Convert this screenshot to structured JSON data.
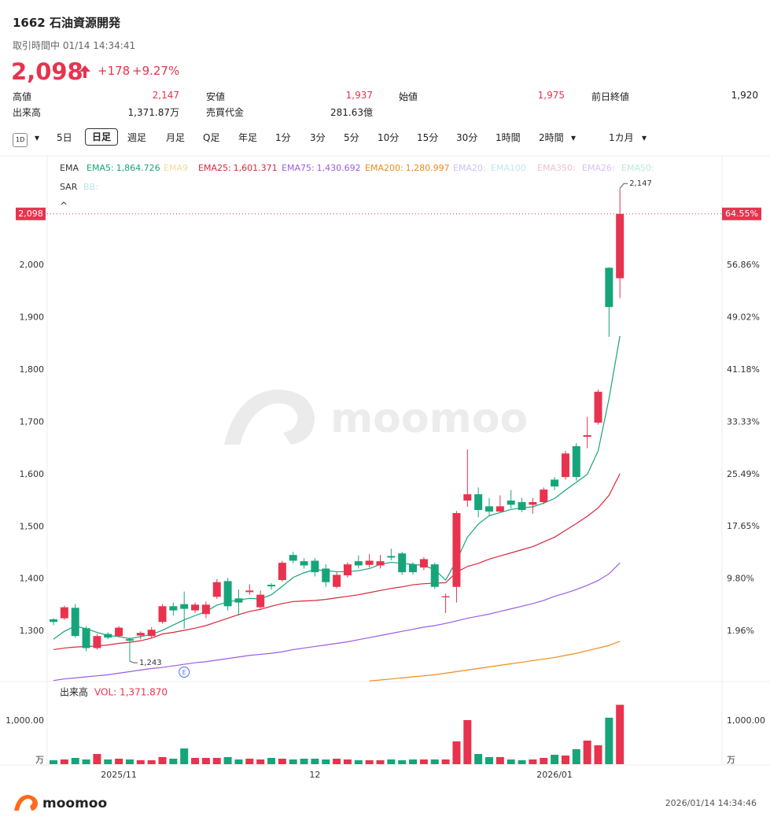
{
  "header": {
    "title": "1662 石油資源開発",
    "status": "取引時間中 01/14 14:34:41",
    "price": "2,098",
    "change": "+178",
    "change_pct": "+9.27%",
    "stats": [
      {
        "label": "高値",
        "value": "2,147"
      },
      {
        "label": "安値",
        "value": "1,937"
      },
      {
        "label": "始値",
        "value": "1,975"
      },
      {
        "label": "前日終値",
        "value": "1,920"
      },
      {
        "label": "出来高",
        "value": "1,371.87万"
      },
      {
        "label": "売買代金",
        "value": "281.63億"
      }
    ]
  },
  "toolbar": [
    "1D",
    "5日",
    "日足",
    "週足",
    "月足",
    "Q足",
    "年足",
    "1分",
    "3分",
    "5分",
    "10分",
    "15分",
    "30分",
    "1時間",
    "2時間",
    "1カ月"
  ],
  "chart_data": [
    {
      "type": "candlestick",
      "categories": [
        null,
        null,
        null,
        null,
        null,
        null,
        "2025/11",
        null,
        null,
        null,
        null,
        null,
        null,
        null,
        null,
        null,
        null,
        null,
        null,
        null,
        null,
        null,
        null,
        null,
        "12",
        null,
        null,
        null,
        null,
        null,
        null,
        null,
        null,
        null,
        null,
        null,
        null,
        null,
        null,
        null,
        null,
        null,
        null,
        null,
        null,
        null,
        "2026/01",
        null,
        null,
        null,
        null,
        null,
        null
      ],
      "open": [
        1323,
        1325,
        1345,
        1306,
        1268,
        1295,
        1291,
        1285,
        1292,
        1291,
        1318,
        1348,
        1352,
        1340,
        1333,
        1366,
        1396,
        1363,
        1375,
        1346,
        1389,
        1398,
        1446,
        1434,
        1435,
        1420,
        1385,
        1407,
        1434,
        1427,
        1426,
        1444,
        1449,
        1428,
        1422,
        1428,
        1365,
        1385,
        1550,
        1562,
        1539,
        1529,
        1550,
        1547,
        1542,
        1547,
        1590,
        1595,
        1654,
        1672,
        1699,
        1995,
        1975
      ],
      "high": [
        1325,
        1349,
        1352,
        1310,
        1295,
        1298,
        1310,
        1288,
        1300,
        1308,
        1352,
        1355,
        1376,
        1355,
        1357,
        1400,
        1402,
        1380,
        1390,
        1378,
        1392,
        1435,
        1452,
        1440,
        1440,
        1428,
        1413,
        1432,
        1445,
        1448,
        1446,
        1458,
        1452,
        1432,
        1442,
        1431,
        1372,
        1530,
        1648,
        1575,
        1555,
        1560,
        1570,
        1555,
        1555,
        1575,
        1595,
        1645,
        1660,
        1710,
        1762,
        1996,
        2147
      ],
      "low": [
        1312,
        1322,
        1288,
        1262,
        1265,
        1285,
        1288,
        1243,
        1285,
        1288,
        1315,
        1330,
        1305,
        1335,
        1325,
        1362,
        1340,
        1330,
        1370,
        1343,
        1380,
        1395,
        1430,
        1420,
        1405,
        1385,
        1382,
        1403,
        1420,
        1422,
        1420,
        1436,
        1408,
        1408,
        1417,
        1381,
        1335,
        1355,
        1538,
        1518,
        1520,
        1528,
        1535,
        1528,
        1525,
        1543,
        1570,
        1590,
        1588,
        1650,
        1695,
        1863,
        1937
      ],
      "close": [
        1318,
        1346,
        1291,
        1268,
        1291,
        1288,
        1307,
        1282,
        1297,
        1303,
        1348,
        1340,
        1343,
        1351,
        1351,
        1394,
        1348,
        1355,
        1378,
        1370,
        1386,
        1431,
        1435,
        1426,
        1413,
        1394,
        1408,
        1428,
        1426,
        1435,
        1434,
        1441,
        1413,
        1413,
        1438,
        1385,
        1367,
        1526,
        1562,
        1532,
        1529,
        1539,
        1542,
        1532,
        1547,
        1571,
        1577,
        1640,
        1595,
        1675,
        1758,
        1920,
        2098
      ],
      "up_color": "#e8334e",
      "down_color": "#16a57a",
      "ylim": [
        1204,
        2206
      ],
      "yticks": [
        {
          "value": 1300,
          "label": "1,300"
        },
        {
          "value": 1400,
          "label": "1,400"
        },
        {
          "value": 1500,
          "label": "1,500"
        },
        {
          "value": 1600,
          "label": "1,600"
        },
        {
          "value": 1700,
          "label": "1,700"
        },
        {
          "value": 1800,
          "label": "1,800"
        },
        {
          "value": 1900,
          "label": "1,900"
        },
        {
          "value": 2000,
          "label": "2,000"
        }
      ],
      "y2lim": [
        -5.57,
        73.01
      ],
      "y2ticks": [
        {
          "value": 1.96,
          "label": "1.96%"
        },
        {
          "value": 9.8,
          "label": "9.80%"
        },
        {
          "value": 17.65,
          "label": "17.65%"
        },
        {
          "value": 25.49,
          "label": "25.49%"
        },
        {
          "value": 33.33,
          "label": "33.33%"
        },
        {
          "value": 41.18,
          "label": "41.18%"
        },
        {
          "value": 49.02,
          "label": "49.02%"
        },
        {
          "value": 56.86,
          "label": "56.86%"
        }
      ],
      "last_price_label": "2,098",
      "last_change_label": "64.55%",
      "high_label": "2,147",
      "low_label": "1,243",
      "earnings_marker": "E",
      "legend_title": "EMA",
      "series": [
        {
          "name": "EMA5:",
          "last_label": "1,864.726",
          "color": "#16a57a",
          "values": [
            1285,
            1300,
            1310,
            1305,
            1298,
            1292,
            1290,
            1286,
            1290,
            1294,
            1302,
            1312,
            1322,
            1330,
            1338,
            1350,
            1356,
            1360,
            1363,
            1362,
            1370,
            1386,
            1403,
            1412,
            1418,
            1416,
            1414,
            1414,
            1416,
            1420,
            1428,
            1432,
            1430,
            1428,
            1426,
            1418,
            1398,
            1435,
            1480,
            1505,
            1521,
            1527,
            1533,
            1536,
            1538,
            1545,
            1554,
            1570,
            1585,
            1600,
            1645,
            1745,
            1864.726
          ]
        },
        {
          "name": "EMA25:",
          "last_label": "1,601.371",
          "color": "#d8283c",
          "values": [
            1265,
            1268,
            1270,
            1271,
            1272,
            1274,
            1277,
            1279,
            1282,
            1287,
            1295,
            1298,
            1302,
            1306,
            1311,
            1318,
            1325,
            1332,
            1338,
            1342,
            1348,
            1353,
            1357,
            1358,
            1359,
            1361,
            1364,
            1367,
            1370,
            1374,
            1378,
            1382,
            1385,
            1389,
            1391,
            1392,
            1393,
            1413,
            1424,
            1430,
            1438,
            1444,
            1450,
            1456,
            1462,
            1471,
            1480,
            1493,
            1506,
            1520,
            1536,
            1560,
            1601.371
          ]
        },
        {
          "name": "EMA75:",
          "last_label": "1,430.692",
          "color": "#9b5de5",
          "values": [
            1206,
            1209,
            1211,
            1213,
            1215,
            1217,
            1220,
            1223,
            1226,
            1229,
            1231,
            1234,
            1237,
            1240,
            1242,
            1245,
            1248,
            1251,
            1254,
            1256,
            1258,
            1261,
            1265,
            1268,
            1271,
            1274,
            1277,
            1280,
            1284,
            1288,
            1292,
            1296,
            1300,
            1304,
            1308,
            1311,
            1315,
            1320,
            1325,
            1329,
            1333,
            1338,
            1343,
            1348,
            1353,
            1359,
            1367,
            1373,
            1380,
            1388,
            1397,
            1410,
            1430.692
          ]
        },
        {
          "name": "EMA200:",
          "last_label": "1,280.997",
          "color": "#f08a1c",
          "values": [
            null,
            null,
            null,
            null,
            null,
            null,
            null,
            null,
            null,
            null,
            null,
            null,
            null,
            null,
            null,
            null,
            null,
            null,
            null,
            null,
            null,
            null,
            null,
            null,
            null,
            null,
            null,
            null,
            null,
            1205,
            1207,
            1209,
            1211,
            1213,
            1215,
            1217,
            1220,
            1223,
            1226,
            1229,
            1232,
            1235,
            1238,
            1241,
            1244,
            1247,
            1250,
            1254,
            1258,
            1263,
            1268,
            1273,
            1280.997
          ]
        }
      ],
      "inactive_indicators": [
        {
          "name": "EMA9",
          "color": "#f6d9a0"
        },
        {
          "name": "EMA20:",
          "color": "#c9c3ee"
        },
        {
          "name": "EMA100",
          "color": "#bfe6f2"
        },
        {
          "name": "EMA350:",
          "color": "#f2c0cc"
        },
        {
          "name": "EMA26:",
          "color": "#d6c4ee"
        },
        {
          "name": "EMA50:",
          "color": "#b9ead9"
        }
      ],
      "sub_legend": "SAR",
      "sub_inactive": "BB:",
      "watermark": "moomoo"
    },
    {
      "type": "bar",
      "title": "出来高",
      "value_label": "VOL: 1,371.870",
      "values": [
        91,
        109,
        145,
        109,
        236,
        109,
        127,
        109,
        91,
        91,
        164,
        127,
        364,
        145,
        145,
        145,
        164,
        109,
        127,
        109,
        145,
        127,
        109,
        127,
        127,
        109,
        127,
        109,
        91,
        91,
        91,
        109,
        91,
        109,
        109,
        109,
        109,
        527,
        1018,
        236,
        164,
        164,
        109,
        91,
        109,
        145,
        218,
        200,
        345,
        545,
        436,
        1073,
        1371.87
      ],
      "ylim": [
        0,
        1836
      ],
      "yticks": [
        {
          "value": 1000,
          "label": "1,000.00"
        }
      ],
      "unit_label": "万"
    }
  ],
  "footer": {
    "brand": "moomoo",
    "timestamp": "2026/01/14 14:34:46"
  }
}
